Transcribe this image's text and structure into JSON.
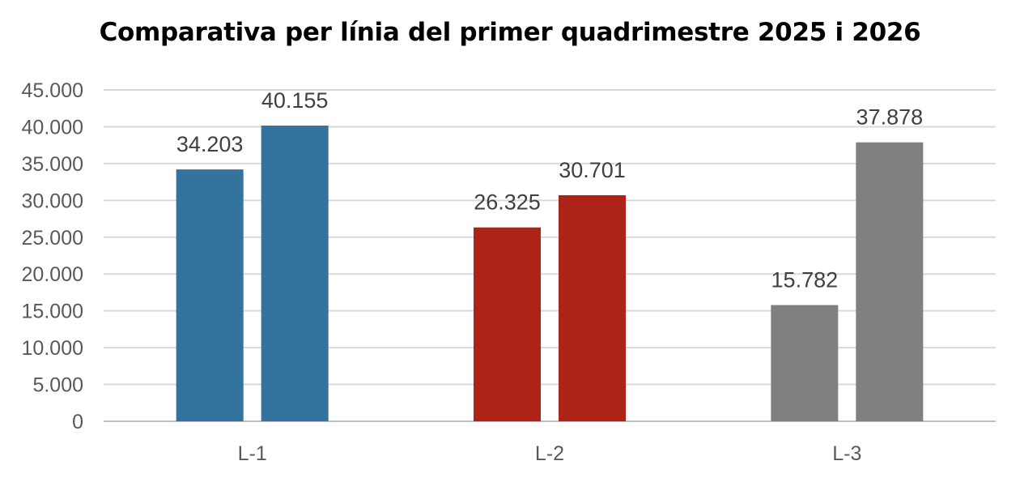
{
  "chart_data": {
    "type": "bar",
    "title": "Comparativa per línia del primer quadrimestre 2025 i 2026",
    "xlabel": "",
    "ylabel": "",
    "categories": [
      "L-1",
      "L-2",
      "L-3"
    ],
    "series": [
      {
        "values": [
          34203,
          26325,
          15782
        ]
      },
      {
        "values": [
          40155,
          30701,
          37878
        ]
      }
    ],
    "value_labels": [
      [
        "34.203",
        "26.325",
        "15.782"
      ],
      [
        "40.155",
        "30.701",
        "37.878"
      ]
    ],
    "category_colors": [
      "#33739e",
      "#ad2318",
      "#808080"
    ],
    "ylim": [
      0,
      45000
    ],
    "yticks": [
      0,
      5000,
      10000,
      15000,
      20000,
      25000,
      30000,
      35000,
      40000,
      45000
    ],
    "ytick_labels": [
      "0",
      "5.000",
      "10.000",
      "15.000",
      "20.000",
      "25.000",
      "30.000",
      "35.000",
      "40.000",
      "45.000"
    ],
    "grid": true,
    "legend": "none"
  },
  "colors": {
    "grid": "#d9d9d9",
    "axis": "#bfbfbf"
  }
}
